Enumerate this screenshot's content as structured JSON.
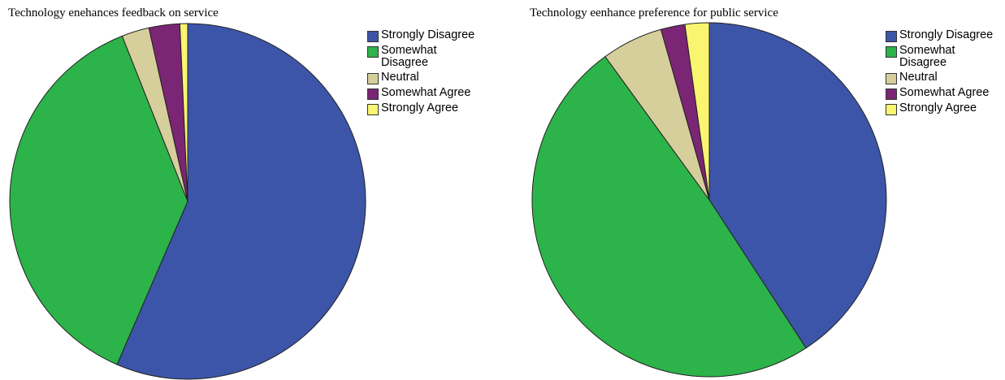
{
  "chart_data": [
    {
      "type": "pie",
      "title": "Technology enehances feedback on service",
      "categories": [
        "Strongly Disagree",
        "Somewhat Disagree",
        "Neutral",
        "Somewhat Agree",
        "Strongly Agree"
      ],
      "values": [
        56.5,
        37.5,
        2.5,
        2.8,
        0.7
      ],
      "colors": [
        "#3d55a8",
        "#2cb34a",
        "#d6cf9c",
        "#7b2575",
        "#faf571"
      ],
      "legend": {
        "position": "right",
        "labels": [
          "Strongly Disagree",
          "Somewhat Disagree",
          "Neutral",
          "Somewhat Agree",
          "Strongly Agree"
        ]
      }
    },
    {
      "type": "pie",
      "title": "Technology eenhance preference for public service",
      "categories": [
        "Strongly Disagree",
        "Somewhat Disagree",
        "Neutral",
        "Somewhat Agree",
        "Strongly Agree"
      ],
      "values": [
        40.8,
        49.2,
        5.6,
        2.2,
        2.2
      ],
      "colors": [
        "#3d55a8",
        "#2cb34a",
        "#d6cf9c",
        "#7b2575",
        "#faf571"
      ],
      "legend": {
        "position": "right",
        "labels": [
          "Strongly Disagree",
          "Somewhat Disagree",
          "Neutral",
          "Somewhat Agree",
          "Strongly Agree"
        ]
      }
    }
  ]
}
